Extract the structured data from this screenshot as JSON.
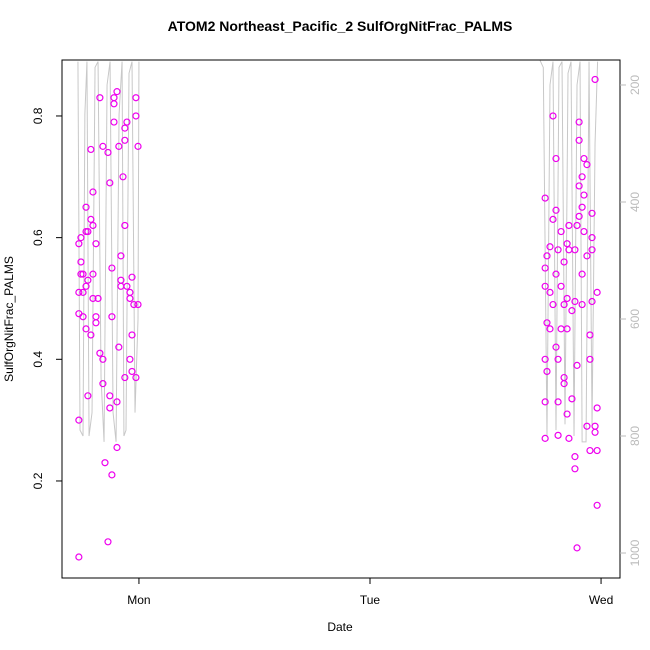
{
  "chart_data": {
    "type": "scatter",
    "title": "ATOM2 Northeast_Pacific_2 SulfOrgNitFrac_PALMS",
    "x_label": "Date",
    "y_label": "SulfOrgNitFrac_PALMS",
    "xlim": [
      0.667,
      3.082
    ],
    "xticks": [
      {
        "value": 1,
        "label": "Mon"
      },
      {
        "value": 2,
        "label": "Tue"
      },
      {
        "value": 3,
        "label": "Wed"
      }
    ],
    "ylim": [
      0.0405,
      0.892
    ],
    "yticks": [
      0.2,
      0.4,
      0.6,
      0.8
    ],
    "y2lim": [
      1042.7,
      157.3
    ],
    "y2ticks": [
      200,
      400,
      600,
      800,
      1000
    ],
    "series": [
      {
        "type": "scatter",
        "color": "#ee00ee",
        "x": [
          0.74,
          0.74,
          0.74,
          0.74,
          0.74,
          0.749,
          0.749,
          0.749,
          0.758,
          0.758,
          0.758,
          0.771,
          0.771,
          0.771,
          0.771,
          0.779,
          0.779,
          0.779,
          0.792,
          0.792,
          0.792,
          0.801,
          0.801,
          0.801,
          0.801,
          0.814,
          0.814,
          0.814,
          0.823,
          0.831,
          0.831,
          0.844,
          0.844,
          0.844,
          0.853,
          0.866,
          0.866,
          0.874,
          0.874,
          0.874,
          0.883,
          0.883,
          0.883,
          0.892,
          0.892,
          0.892,
          0.905,
          0.905,
          0.905,
          0.913,
          0.913,
          0.922,
          0.922,
          0.922,
          0.931,
          0.939,
          0.939,
          0.939,
          0.939,
          0.948,
          0.948,
          0.961,
          0.961,
          0.961,
          0.97,
          0.97,
          0.97,
          0.978,
          0.987,
          0.987,
          0.987,
          0.996,
          0.996,
          2.758,
          2.758,
          2.758,
          2.758,
          2.758,
          2.758,
          2.766,
          2.766,
          2.766,
          2.779,
          2.779,
          2.779,
          2.792,
          2.792,
          2.792,
          2.805,
          2.805,
          2.805,
          2.805,
          2.814,
          2.814,
          2.814,
          2.814,
          2.827,
          2.827,
          2.827,
          2.84,
          2.84,
          2.84,
          2.84,
          2.853,
          2.853,
          2.853,
          2.853,
          2.861,
          2.861,
          2.861,
          2.874,
          2.874,
          2.887,
          2.887,
          2.887,
          2.887,
          2.896,
          2.896,
          2.896,
          2.905,
          2.905,
          2.905,
          2.905,
          2.918,
          2.918,
          2.918,
          2.918,
          2.926,
          2.926,
          2.926,
          2.939,
          2.939,
          2.939,
          2.952,
          2.952,
          2.952,
          2.961,
          2.961,
          2.961,
          2.961,
          2.974,
          2.974,
          2.974,
          2.983,
          2.983,
          2.983,
          2.983
        ],
        "values": [
          0.075,
          0.3,
          0.475,
          0.51,
          0.59,
          0.56,
          0.54,
          0.6,
          0.54,
          0.51,
          0.47,
          0.61,
          0.65,
          0.52,
          0.45,
          0.34,
          0.61,
          0.53,
          0.745,
          0.63,
          0.44,
          0.675,
          0.62,
          0.54,
          0.5,
          0.47,
          0.59,
          0.46,
          0.5,
          0.83,
          0.41,
          0.75,
          0.36,
          0.4,
          0.23,
          0.1,
          0.74,
          0.69,
          0.34,
          0.32,
          0.21,
          0.55,
          0.47,
          0.83,
          0.82,
          0.79,
          0.84,
          0.255,
          0.33,
          0.75,
          0.42,
          0.57,
          0.53,
          0.52,
          0.7,
          0.62,
          0.37,
          0.78,
          0.76,
          0.79,
          0.52,
          0.51,
          0.5,
          0.4,
          0.535,
          0.38,
          0.44,
          0.49,
          0.83,
          0.8,
          0.37,
          0.75,
          0.49,
          0.665,
          0.55,
          0.52,
          0.4,
          0.33,
          0.27,
          0.57,
          0.46,
          0.38,
          0.585,
          0.51,
          0.45,
          0.63,
          0.8,
          0.49,
          0.73,
          0.645,
          0.54,
          0.42,
          0.58,
          0.4,
          0.33,
          0.275,
          0.61,
          0.52,
          0.45,
          0.56,
          0.49,
          0.36,
          0.37,
          0.59,
          0.5,
          0.45,
          0.31,
          0.62,
          0.58,
          0.27,
          0.48,
          0.335,
          0.58,
          0.495,
          0.24,
          0.22,
          0.09,
          0.62,
          0.39,
          0.635,
          0.685,
          0.76,
          0.79,
          0.7,
          0.65,
          0.54,
          0.49,
          0.73,
          0.67,
          0.61,
          0.72,
          0.29,
          0.57,
          0.44,
          0.4,
          0.25,
          0.58,
          0.6,
          0.64,
          0.495,
          0.86,
          0.28,
          0.29,
          0.16,
          0.51,
          0.25,
          0.32
        ]
      },
      {
        "type": "line",
        "axis": "y2",
        "color": "#c8c8c8",
        "x": [
          0.736,
          0.745,
          0.758,
          0.766,
          0.775,
          0.784,
          0.797,
          0.81,
          0.823,
          0.836,
          0.849,
          0.862,
          0.875,
          0.888,
          0.901,
          0.914,
          0.927,
          0.935,
          0.944,
          0.957,
          0.97,
          0.983,
          0.996,
          1.0,
          null,
          2.736,
          2.75,
          2.766,
          2.779,
          2.792,
          2.805,
          2.818,
          2.831,
          2.844,
          2.857,
          2.87,
          2.883,
          2.896,
          2.909,
          2.918,
          2.935,
          2.948,
          2.961,
          2.974,
          2.985
        ],
        "values": [
          160,
          790,
          800,
          250,
          160,
          800,
          760,
          170,
          160,
          700,
          810,
          200,
          160,
          760,
          810,
          250,
          160,
          800,
          790,
          180,
          160,
          760,
          600,
          160,
          null,
          158,
          170,
          800,
          200,
          160,
          790,
          170,
          160,
          780,
          180,
          160,
          800,
          200,
          160,
          810,
          810,
          160,
          780,
          300,
          160
        ]
      }
    ]
  }
}
